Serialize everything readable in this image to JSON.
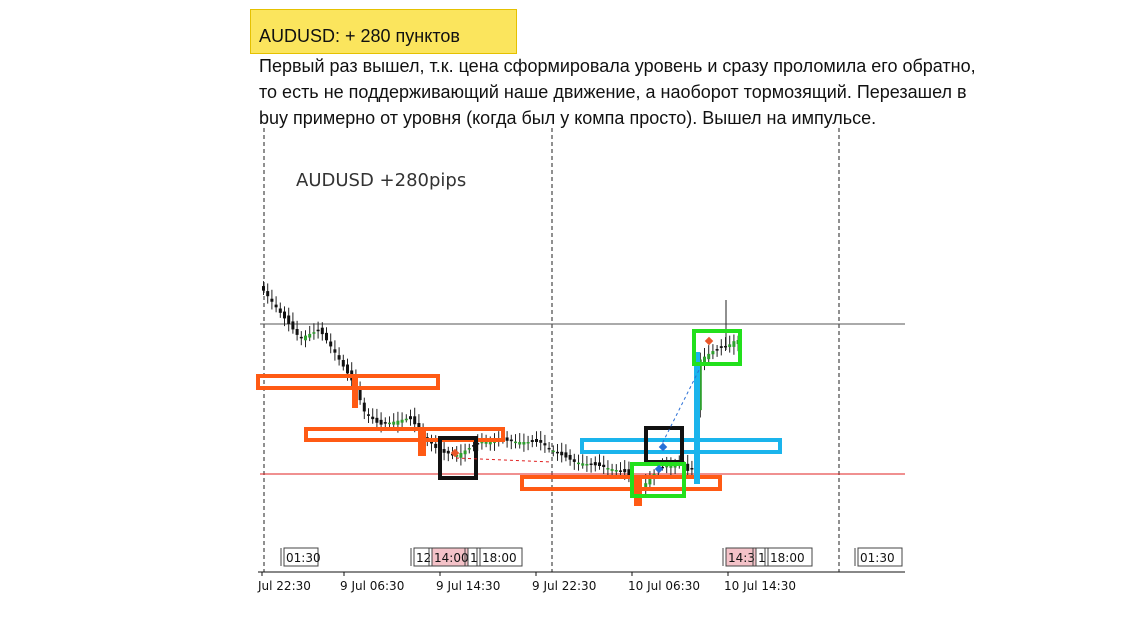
{
  "heading": "AUDUSD: + 280 пунктов",
  "description": [
    "Первый раз вышел, т.к. цена сформировала уровень и сразу проломила его обратно,",
    "то есть не поддерживающий наше движение, а наоборот тормозящий. Перезашел в",
    "buy примерно от уровня (когда был у компа просто). Вышел на импульсе."
  ],
  "chart_data": {
    "type": "candlestick",
    "title": "AUDUSD +280pips",
    "symbol": "AUDUSD",
    "x_tick_labels": [
      "Jul 22:30",
      "9 Jul 06:30",
      "9 Jul 14:30",
      "9 Jul 22:30",
      "10 Jul 06:30",
      "10 Jul 14:30"
    ],
    "session_tags": [
      {
        "text": "01:30",
        "highlight": false
      },
      {
        "text": "12",
        "highlight": false
      },
      {
        "text": "14:00",
        "highlight": true
      },
      {
        "text": "1",
        "highlight": false
      },
      {
        "text": "18:00",
        "highlight": false
      },
      {
        "text": "14:3",
        "highlight": true
      },
      {
        "text": "1",
        "highlight": false
      },
      {
        "text": "18:00",
        "highlight": false
      },
      {
        "text": "01:30",
        "highlight": false
      }
    ],
    "colors": {
      "orange_zone": "#ff5a14",
      "blue_zone": "#1ab4ec",
      "green_box": "#22e01c",
      "black_box": "#111111",
      "red_line": "#e02020",
      "grey_line": "#555555",
      "bull_candle": "#2ea02e",
      "bear_candle": "#111111"
    }
  }
}
